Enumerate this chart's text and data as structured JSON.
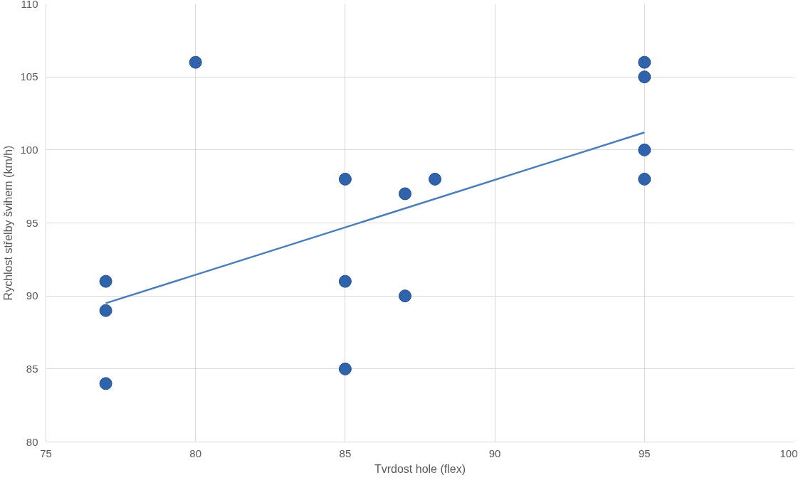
{
  "chart_data": {
    "type": "scatter",
    "xlabel": "Tvrdost hole (flex)",
    "ylabel": "Rychlost střelby švihem (km/h)",
    "xlim": [
      75,
      100
    ],
    "xticks": [
      75,
      80,
      85,
      90,
      95,
      100
    ],
    "ylim": [
      80,
      110
    ],
    "yticks": [
      80,
      85,
      90,
      95,
      100,
      105,
      110
    ],
    "grid": true,
    "series": [
      {
        "marker": "circle",
        "color": "#2f64ad",
        "x": [
          77,
          77,
          77,
          80,
          85,
          85,
          85,
          87,
          87,
          88,
          95,
          95,
          95,
          95
        ],
        "values": [
          91,
          89,
          84,
          106,
          98,
          91,
          85,
          97,
          90,
          98,
          106,
          105,
          100,
          98
        ]
      },
      {
        "type": "line",
        "color": "#4a7ebb",
        "x": [
          77,
          95
        ],
        "values": [
          89.5,
          101.2
        ]
      }
    ]
  }
}
